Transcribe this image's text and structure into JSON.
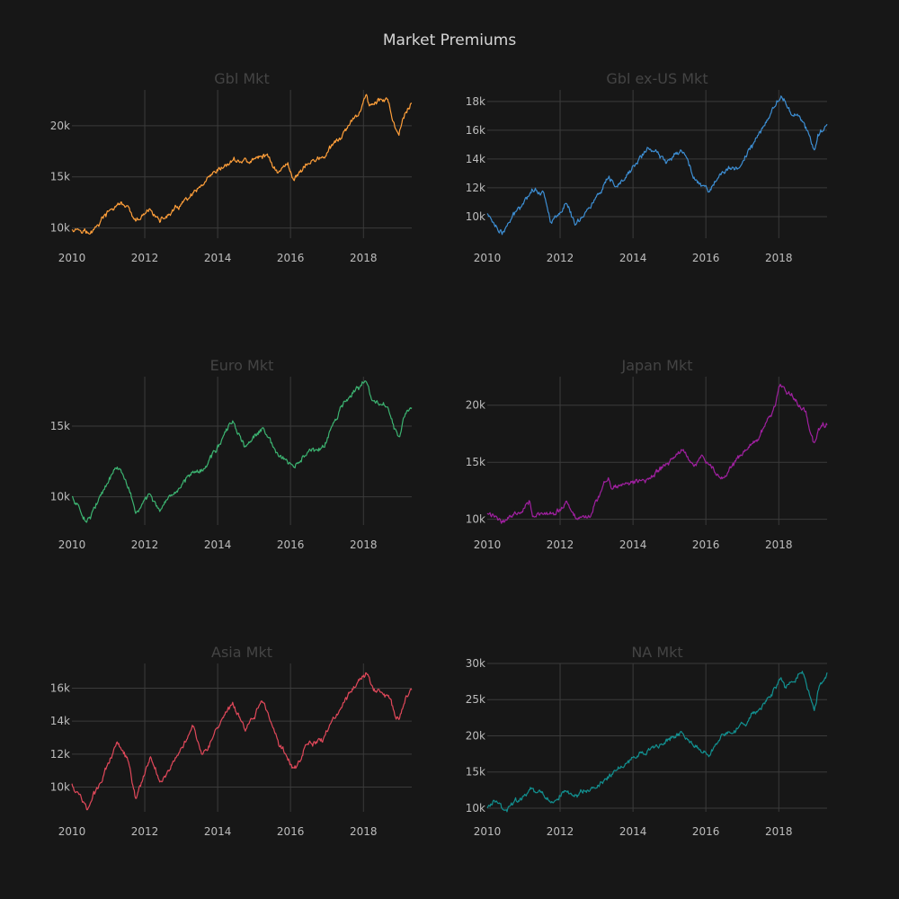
{
  "chart_data": {
    "type": "line",
    "title": "Market Premiums",
    "grid": true,
    "legend": "none",
    "panels": [
      {
        "title": "Gbl Mkt",
        "color": "#ff9f3a",
        "xlim": [
          "2010-01-01",
          "2019-04-30"
        ],
        "ylim": [
          9000,
          23500
        ],
        "x_ticks": [
          "2010",
          "2012",
          "2014",
          "2016",
          "2018"
        ],
        "y_ticks": [
          10000,
          15000,
          20000
        ],
        "y_tick_labels": [
          "10k",
          "15k",
          "20k"
        ],
        "series": [
          {
            "x": "2010-01-01",
            "y": 10000
          },
          {
            "x": "2010-05-01",
            "y": 9900
          },
          {
            "x": "2010-07-01",
            "y": 9300
          },
          {
            "x": "2010-11-01",
            "y": 10900
          },
          {
            "x": "2011-04-01",
            "y": 12300
          },
          {
            "x": "2011-07-01",
            "y": 12200
          },
          {
            "x": "2011-10-01",
            "y": 10400
          },
          {
            "x": "2012-03-01",
            "y": 11900
          },
          {
            "x": "2012-06-01",
            "y": 10600
          },
          {
            "x": "2012-12-01",
            "y": 12000
          },
          {
            "x": "2013-06-01",
            "y": 13500
          },
          {
            "x": "2013-12-01",
            "y": 15200
          },
          {
            "x": "2014-06-01",
            "y": 16600
          },
          {
            "x": "2014-12-01",
            "y": 16500
          },
          {
            "x": "2015-05-01",
            "y": 17200
          },
          {
            "x": "2015-09-01",
            "y": 15400
          },
          {
            "x": "2015-12-01",
            "y": 16300
          },
          {
            "x": "2016-02-01",
            "y": 14800
          },
          {
            "x": "2016-06-01",
            "y": 16200
          },
          {
            "x": "2016-12-01",
            "y": 17000
          },
          {
            "x": "2017-06-01",
            "y": 19000
          },
          {
            "x": "2017-12-01",
            "y": 21500
          },
          {
            "x": "2018-01-26",
            "y": 23200
          },
          {
            "x": "2018-03-01",
            "y": 21900
          },
          {
            "x": "2018-09-01",
            "y": 22800
          },
          {
            "x": "2018-10-15",
            "y": 20500
          },
          {
            "x": "2018-12-24",
            "y": 18700
          },
          {
            "x": "2019-02-01",
            "y": 20800
          },
          {
            "x": "2019-04-30",
            "y": 22300
          }
        ]
      },
      {
        "title": "Gbl ex-US Mkt",
        "color": "#3d8ed3",
        "xlim": [
          "2010-01-01",
          "2019-04-30"
        ],
        "ylim": [
          8500,
          18800
        ],
        "x_ticks": [
          "2010",
          "2012",
          "2014",
          "2016",
          "2018"
        ],
        "y_ticks": [
          10000,
          12000,
          14000,
          16000,
          18000
        ],
        "y_tick_labels": [
          "10k",
          "12k",
          "14k",
          "16k",
          "18k"
        ],
        "series": [
          {
            "x": "2010-01-01",
            "y": 10200
          },
          {
            "x": "2010-06-01",
            "y": 8800
          },
          {
            "x": "2010-11-01",
            "y": 10500
          },
          {
            "x": "2011-04-01",
            "y": 12000
          },
          {
            "x": "2011-08-01",
            "y": 11500
          },
          {
            "x": "2011-10-01",
            "y": 9600
          },
          {
            "x": "2012-03-01",
            "y": 10900
          },
          {
            "x": "2012-06-01",
            "y": 9500
          },
          {
            "x": "2012-12-01",
            "y": 11000
          },
          {
            "x": "2013-05-01",
            "y": 12500
          },
          {
            "x": "2013-08-01",
            "y": 12000
          },
          {
            "x": "2014-06-01",
            "y": 14800
          },
          {
            "x": "2014-12-01",
            "y": 13800
          },
          {
            "x": "2015-05-01",
            "y": 14800
          },
          {
            "x": "2015-09-01",
            "y": 12800
          },
          {
            "x": "2016-02-01",
            "y": 11800
          },
          {
            "x": "2016-06-01",
            "y": 13000
          },
          {
            "x": "2016-12-01",
            "y": 13500
          },
          {
            "x": "2017-06-01",
            "y": 15500
          },
          {
            "x": "2018-01-26",
            "y": 18500
          },
          {
            "x": "2018-04-01",
            "y": 17500
          },
          {
            "x": "2018-09-01",
            "y": 16700
          },
          {
            "x": "2018-12-24",
            "y": 14400
          },
          {
            "x": "2019-02-01",
            "y": 15600
          },
          {
            "x": "2019-04-30",
            "y": 16400
          }
        ]
      },
      {
        "title": "Euro Mkt",
        "color": "#3cb371",
        "xlim": [
          "2010-01-01",
          "2019-04-30"
        ],
        "ylim": [
          8000,
          18500
        ],
        "x_ticks": [
          "2010",
          "2012",
          "2014",
          "2016",
          "2018"
        ],
        "y_ticks": [
          10000,
          15000
        ],
        "y_tick_labels": [
          "10k",
          "15k"
        ],
        "series": [
          {
            "x": "2010-01-01",
            "y": 10000
          },
          {
            "x": "2010-06-01",
            "y": 8300
          },
          {
            "x": "2010-11-01",
            "y": 10200
          },
          {
            "x": "2011-04-01",
            "y": 12200
          },
          {
            "x": "2011-08-01",
            "y": 10500
          },
          {
            "x": "2011-10-01",
            "y": 8700
          },
          {
            "x": "2012-03-01",
            "y": 10300
          },
          {
            "x": "2012-06-01",
            "y": 8800
          },
          {
            "x": "2012-12-01",
            "y": 10500
          },
          {
            "x": "2013-05-01",
            "y": 12000
          },
          {
            "x": "2013-08-01",
            "y": 11800
          },
          {
            "x": "2014-06-01",
            "y": 15300
          },
          {
            "x": "2014-10-01",
            "y": 13500
          },
          {
            "x": "2015-04-01",
            "y": 14800
          },
          {
            "x": "2015-08-01",
            "y": 13200
          },
          {
            "x": "2016-02-01",
            "y": 12000
          },
          {
            "x": "2016-06-01",
            "y": 13000
          },
          {
            "x": "2016-12-01",
            "y": 13500
          },
          {
            "x": "2017-06-01",
            "y": 16500
          },
          {
            "x": "2018-01-26",
            "y": 18200
          },
          {
            "x": "2018-04-01",
            "y": 16800
          },
          {
            "x": "2018-09-01",
            "y": 16300
          },
          {
            "x": "2018-12-24",
            "y": 14000
          },
          {
            "x": "2019-02-01",
            "y": 15500
          },
          {
            "x": "2019-04-30",
            "y": 16300
          }
        ]
      },
      {
        "title": "Japan Mkt",
        "color": "#a020a0",
        "xlim": [
          "2010-01-01",
          "2019-04-30"
        ],
        "ylim": [
          9500,
          22500
        ],
        "x_ticks": [
          "2010",
          "2012",
          "2014",
          "2016",
          "2018"
        ],
        "y_ticks": [
          10000,
          15000,
          20000
        ],
        "y_tick_labels": [
          "10k",
          "15k",
          "20k"
        ],
        "series": [
          {
            "x": "2010-01-01",
            "y": 10500
          },
          {
            "x": "2010-06-01",
            "y": 9900
          },
          {
            "x": "2010-12-01",
            "y": 10700
          },
          {
            "x": "2011-03-01",
            "y": 11800
          },
          {
            "x": "2011-04-01",
            "y": 10500
          },
          {
            "x": "2011-11-01",
            "y": 10300
          },
          {
            "x": "2012-03-01",
            "y": 11500
          },
          {
            "x": "2012-06-01",
            "y": 10100
          },
          {
            "x": "2012-11-01",
            "y": 10400
          },
          {
            "x": "2013-05-01",
            "y": 13800
          },
          {
            "x": "2013-06-01",
            "y": 12800
          },
          {
            "x": "2014-06-01",
            "y": 13500
          },
          {
            "x": "2014-12-01",
            "y": 14800
          },
          {
            "x": "2015-06-01",
            "y": 16200
          },
          {
            "x": "2015-09-01",
            "y": 14500
          },
          {
            "x": "2015-12-01",
            "y": 15500
          },
          {
            "x": "2016-06-01",
            "y": 13500
          },
          {
            "x": "2016-12-01",
            "y": 15500
          },
          {
            "x": "2017-06-01",
            "y": 17000
          },
          {
            "x": "2017-12-01",
            "y": 20000
          },
          {
            "x": "2018-01-15",
            "y": 21800
          },
          {
            "x": "2018-06-01",
            "y": 20500
          },
          {
            "x": "2018-10-01",
            "y": 19500
          },
          {
            "x": "2018-12-24",
            "y": 16500
          },
          {
            "x": "2019-02-01",
            "y": 17800
          },
          {
            "x": "2019-04-30",
            "y": 18400
          }
        ]
      },
      {
        "title": "Asia Mkt",
        "color": "#e0485a",
        "xlim": [
          "2010-01-01",
          "2019-04-30"
        ],
        "ylim": [
          8500,
          17500
        ],
        "x_ticks": [
          "2010",
          "2012",
          "2014",
          "2016",
          "2018"
        ],
        "y_ticks": [
          10000,
          12000,
          14000,
          16000
        ],
        "y_tick_labels": [
          "10k",
          "12k",
          "14k",
          "16k"
        ],
        "series": [
          {
            "x": "2010-01-01",
            "y": 10200
          },
          {
            "x": "2010-06-01",
            "y": 8700
          },
          {
            "x": "2010-11-01",
            "y": 10500
          },
          {
            "x": "2011-04-01",
            "y": 12800
          },
          {
            "x": "2011-08-01",
            "y": 11500
          },
          {
            "x": "2011-10-01",
            "y": 9300
          },
          {
            "x": "2012-03-01",
            "y": 11800
          },
          {
            "x": "2012-06-01",
            "y": 10300
          },
          {
            "x": "2012-12-01",
            "y": 12000
          },
          {
            "x": "2013-05-01",
            "y": 13800
          },
          {
            "x": "2013-08-01",
            "y": 12000
          },
          {
            "x": "2014-06-01",
            "y": 15000
          },
          {
            "x": "2014-10-01",
            "y": 13500
          },
          {
            "x": "2015-04-01",
            "y": 15200
          },
          {
            "x": "2015-09-01",
            "y": 12800
          },
          {
            "x": "2016-02-01",
            "y": 11000
          },
          {
            "x": "2016-06-01",
            "y": 12500
          },
          {
            "x": "2016-12-01",
            "y": 13000
          },
          {
            "x": "2017-06-01",
            "y": 15000
          },
          {
            "x": "2018-01-26",
            "y": 17000
          },
          {
            "x": "2018-04-01",
            "y": 16000
          },
          {
            "x": "2018-09-01",
            "y": 15500
          },
          {
            "x": "2018-12-24",
            "y": 14000
          },
          {
            "x": "2019-02-01",
            "y": 15000
          },
          {
            "x": "2019-04-30",
            "y": 16000
          }
        ]
      },
      {
        "title": "NA Mkt",
        "color": "#129090",
        "xlim": [
          "2010-01-01",
          "2019-04-30"
        ],
        "ylim": [
          9500,
          30000
        ],
        "x_ticks": [
          "2010",
          "2012",
          "2014",
          "2016",
          "2018"
        ],
        "y_ticks": [
          10000,
          15000,
          20000,
          25000,
          30000
        ],
        "y_tick_labels": [
          "10k",
          "15k",
          "20k",
          "25k",
          "30k"
        ],
        "series": [
          {
            "x": "2010-01-01",
            "y": 10000
          },
          {
            "x": "2010-04-01",
            "y": 11000
          },
          {
            "x": "2010-07-01",
            "y": 9600
          },
          {
            "x": "2011-04-01",
            "y": 12800
          },
          {
            "x": "2011-10-01",
            "y": 10800
          },
          {
            "x": "2012-03-01",
            "y": 12500
          },
          {
            "x": "2012-06-01",
            "y": 11500
          },
          {
            "x": "2012-12-01",
            "y": 12800
          },
          {
            "x": "2013-12-01",
            "y": 16500
          },
          {
            "x": "2014-10-01",
            "y": 18800
          },
          {
            "x": "2015-05-01",
            "y": 20500
          },
          {
            "x": "2015-09-01",
            "y": 18500
          },
          {
            "x": "2016-02-01",
            "y": 17500
          },
          {
            "x": "2016-06-01",
            "y": 19800
          },
          {
            "x": "2016-12-01",
            "y": 21000
          },
          {
            "x": "2017-06-01",
            "y": 23500
          },
          {
            "x": "2017-12-01",
            "y": 26500
          },
          {
            "x": "2018-01-26",
            "y": 28500
          },
          {
            "x": "2018-03-01",
            "y": 26500
          },
          {
            "x": "2018-09-01",
            "y": 29000
          },
          {
            "x": "2018-12-24",
            "y": 23000
          },
          {
            "x": "2019-02-01",
            "y": 26500
          },
          {
            "x": "2019-04-30",
            "y": 28600
          }
        ]
      }
    ]
  }
}
